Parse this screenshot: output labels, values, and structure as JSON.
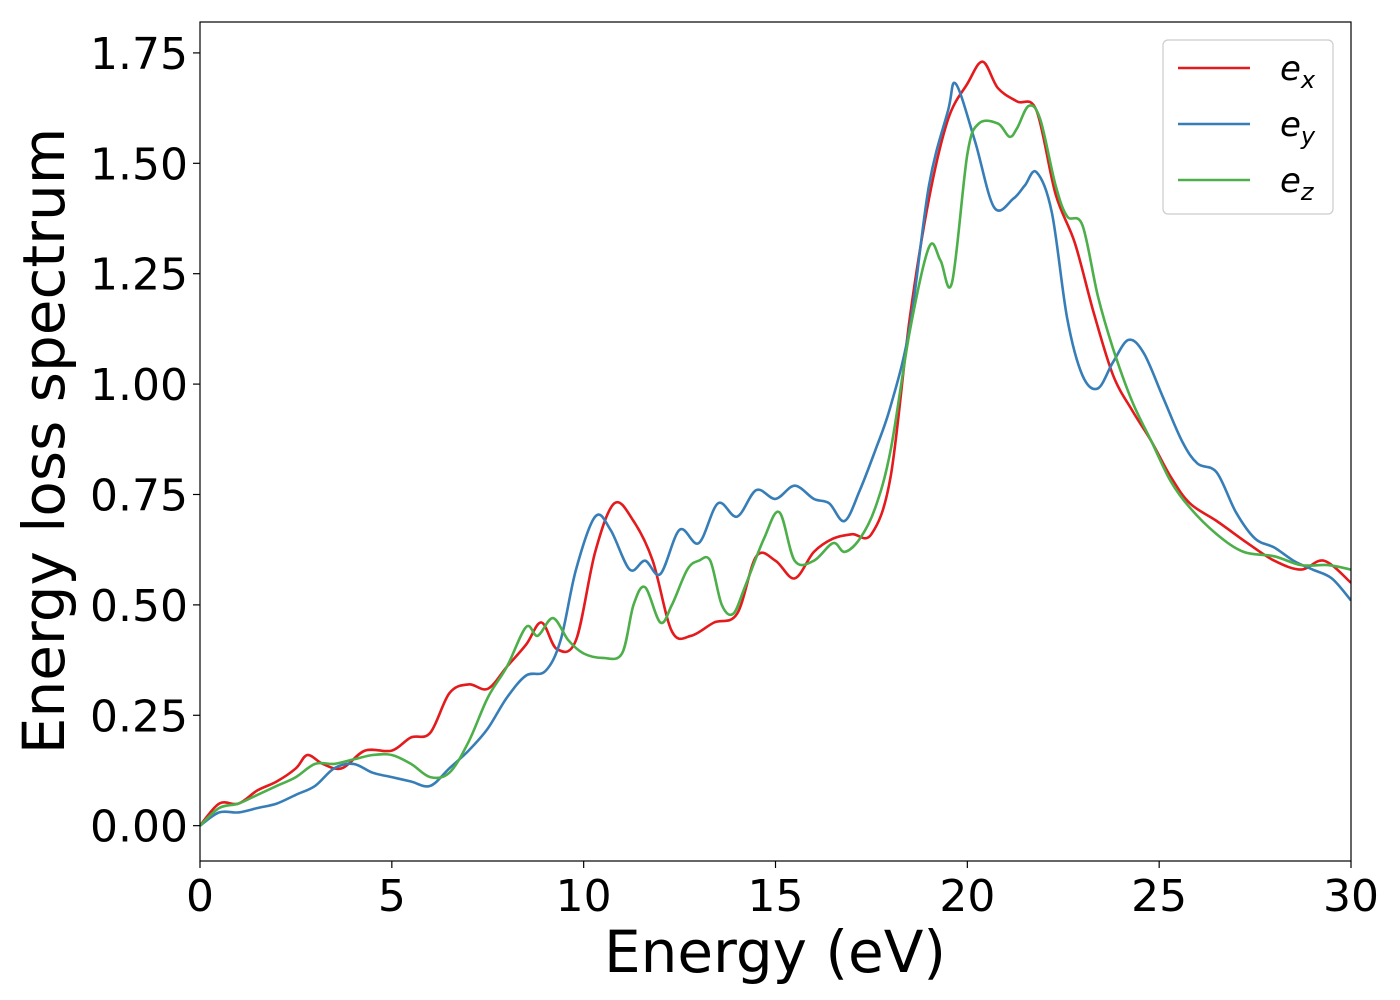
{
  "chart_data": {
    "type": "line",
    "title": "",
    "xlabel": "Energy (eV)",
    "ylabel": "Energy loss spectrum",
    "xlim": [
      0,
      30
    ],
    "ylim": [
      -0.08,
      1.82
    ],
    "xticks": [
      0,
      5,
      10,
      15,
      20,
      25,
      30
    ],
    "xtick_labels": [
      "0",
      "5",
      "10",
      "15",
      "20",
      "25",
      "30"
    ],
    "yticks": [
      0.0,
      0.25,
      0.5,
      0.75,
      1.0,
      1.25,
      1.5,
      1.75
    ],
    "ytick_labels": [
      "0.00",
      "0.25",
      "0.50",
      "0.75",
      "1.00",
      "1.25",
      "1.50",
      "1.75"
    ],
    "grid": false,
    "legend_position": "top-right",
    "series": [
      {
        "name": "e_x",
        "base": "e",
        "sub": "x",
        "color": "#e41a1c",
        "x": [
          0,
          0.5,
          1,
          1.5,
          2,
          2.5,
          2.8,
          3.2,
          3.7,
          4.3,
          5,
          5.5,
          6,
          6.5,
          7,
          7.5,
          8,
          8.5,
          8.9,
          9.3,
          9.8,
          10.3,
          10.8,
          11.3,
          11.8,
          12.3,
          12.8,
          13.4,
          14,
          14.5,
          15,
          15.5,
          16,
          16.5,
          17,
          17.5,
          18,
          18.5,
          19,
          19.5,
          20,
          20.4,
          20.8,
          21.3,
          21.8,
          22.3,
          22.8,
          23.3,
          23.8,
          24.3,
          24.8,
          25.3,
          25.8,
          26.5,
          27.3,
          28,
          28.7,
          29.3,
          30
        ],
        "y": [
          0.0,
          0.05,
          0.05,
          0.08,
          0.1,
          0.13,
          0.16,
          0.14,
          0.13,
          0.17,
          0.17,
          0.2,
          0.21,
          0.3,
          0.32,
          0.31,
          0.36,
          0.41,
          0.46,
          0.4,
          0.42,
          0.62,
          0.73,
          0.69,
          0.6,
          0.44,
          0.43,
          0.46,
          0.48,
          0.61,
          0.6,
          0.56,
          0.62,
          0.65,
          0.66,
          0.66,
          0.79,
          1.15,
          1.42,
          1.6,
          1.68,
          1.73,
          1.67,
          1.64,
          1.62,
          1.43,
          1.32,
          1.16,
          1.02,
          0.94,
          0.87,
          0.79,
          0.73,
          0.69,
          0.64,
          0.6,
          0.58,
          0.6,
          0.55
        ]
      },
      {
        "name": "e_y",
        "base": "e",
        "sub": "y",
        "color": "#377eb8",
        "x": [
          0,
          0.5,
          1,
          1.5,
          2,
          2.5,
          3,
          3.5,
          4,
          4.5,
          5,
          5.5,
          6,
          6.5,
          7,
          7.5,
          8,
          8.5,
          9,
          9.4,
          9.8,
          10.3,
          10.7,
          11.2,
          11.6,
          12,
          12.5,
          13,
          13.5,
          14,
          14.5,
          15,
          15.5,
          16,
          16.4,
          16.8,
          17.2,
          17.6,
          18,
          18.5,
          19,
          19.5,
          19.7,
          20.2,
          20.7,
          21.2,
          21.5,
          21.8,
          22.2,
          22.6,
          23,
          23.4,
          23.8,
          24.2,
          24.6,
          25.1,
          25.6,
          26,
          26.5,
          27,
          27.5,
          28,
          28.5,
          29,
          29.5,
          30
        ],
        "y": [
          0.0,
          0.03,
          0.03,
          0.04,
          0.05,
          0.07,
          0.09,
          0.13,
          0.14,
          0.12,
          0.11,
          0.1,
          0.09,
          0.13,
          0.17,
          0.22,
          0.29,
          0.34,
          0.35,
          0.42,
          0.58,
          0.7,
          0.67,
          0.58,
          0.6,
          0.57,
          0.67,
          0.64,
          0.73,
          0.7,
          0.76,
          0.74,
          0.77,
          0.74,
          0.73,
          0.69,
          0.76,
          0.85,
          0.95,
          1.13,
          1.45,
          1.62,
          1.68,
          1.55,
          1.4,
          1.42,
          1.45,
          1.48,
          1.39,
          1.15,
          1.02,
          0.99,
          1.05,
          1.1,
          1.07,
          0.97,
          0.87,
          0.82,
          0.8,
          0.71,
          0.65,
          0.63,
          0.6,
          0.58,
          0.56,
          0.51
        ]
      },
      {
        "name": "e_z",
        "base": "e",
        "sub": "z",
        "color": "#4daf4a",
        "x": [
          0,
          0.5,
          1,
          1.5,
          2,
          2.5,
          3,
          3.5,
          4,
          4.5,
          5,
          5.5,
          6,
          6.5,
          7,
          7.5,
          8,
          8.5,
          8.8,
          9.2,
          9.6,
          10,
          10.5,
          11,
          11.3,
          11.6,
          12,
          12.3,
          12.7,
          13,
          13.3,
          13.6,
          13.9,
          14.2,
          14.7,
          15.1,
          15.5,
          16,
          16.5,
          16.8,
          17.2,
          17.6,
          18,
          18.5,
          19,
          19.3,
          19.6,
          20,
          20.3,
          20.8,
          21.1,
          21.3,
          21.6,
          21.9,
          22.3,
          22.6,
          23,
          23.4,
          23.8,
          24.3,
          24.8,
          25.3,
          25.8,
          26.5,
          27.2,
          28,
          28.7,
          29.4,
          30
        ],
        "y": [
          0.0,
          0.04,
          0.05,
          0.07,
          0.09,
          0.11,
          0.14,
          0.14,
          0.15,
          0.16,
          0.16,
          0.14,
          0.11,
          0.12,
          0.19,
          0.29,
          0.36,
          0.45,
          0.43,
          0.47,
          0.42,
          0.39,
          0.38,
          0.39,
          0.5,
          0.54,
          0.46,
          0.5,
          0.58,
          0.6,
          0.6,
          0.5,
          0.48,
          0.54,
          0.65,
          0.71,
          0.6,
          0.6,
          0.64,
          0.62,
          0.65,
          0.72,
          0.85,
          1.12,
          1.31,
          1.28,
          1.23,
          1.52,
          1.59,
          1.59,
          1.56,
          1.58,
          1.63,
          1.6,
          1.45,
          1.38,
          1.36,
          1.2,
          1.08,
          0.96,
          0.87,
          0.78,
          0.72,
          0.66,
          0.62,
          0.61,
          0.59,
          0.59,
          0.58
        ]
      }
    ]
  }
}
